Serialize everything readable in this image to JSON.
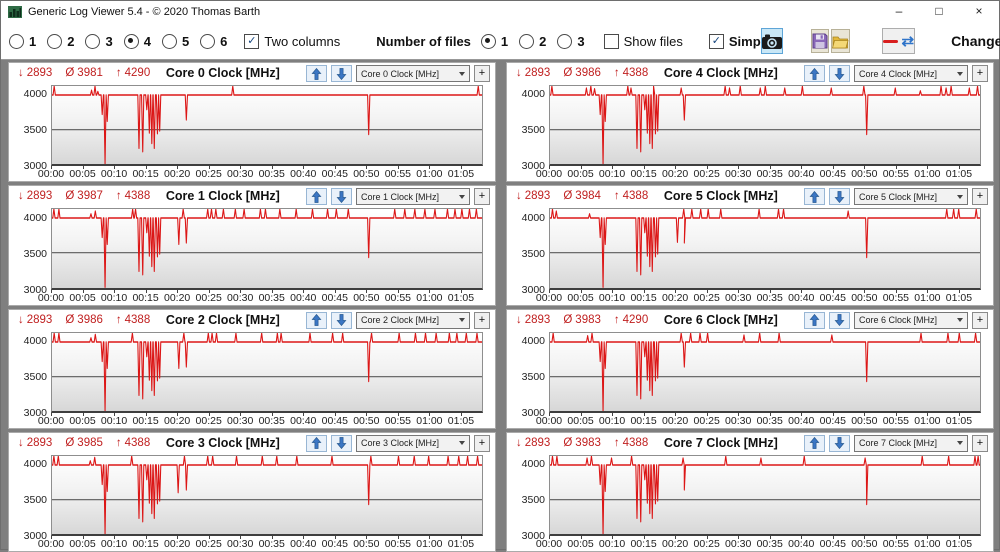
{
  "window": {
    "title": "Generic Log Viewer 5.4 - © 2020 Thomas Barth",
    "controls": {
      "minimize": "–",
      "maximize": "□",
      "close": "×"
    }
  },
  "toolbar": {
    "chart_count_options": [
      "1",
      "2",
      "3",
      "4",
      "5",
      "6"
    ],
    "chart_count_selected": "4",
    "two_columns_label": "Two columns",
    "two_columns_checked": true,
    "number_of_files_label": "Number of files",
    "file_count_options": [
      "1",
      "2",
      "3"
    ],
    "file_count_selected": "1",
    "show_files_label": "Show files",
    "show_files_checked": false,
    "simple_label": "Simple",
    "simple_checked": true,
    "change_all_label": "Change all",
    "check_glyph": "✓",
    "swap_glyph": "⇄",
    "accent_red": "#d81e1e",
    "accent_blue": "#2f74c9"
  },
  "panel_ui": {
    "add_button_label": "+"
  },
  "chart_defaults": {
    "type": "line",
    "line_color": "#dc1616",
    "baseline": 4000,
    "ylim": [
      3000,
      4130
    ],
    "yticks": [
      4000,
      3500,
      3000
    ],
    "gridline_value": 3500,
    "x_range_min": [
      0,
      68.5
    ],
    "xtick_minutes": [
      0,
      5,
      10,
      15,
      20,
      25,
      30,
      35,
      40,
      45,
      50,
      55,
      60,
      65
    ],
    "xtick_labels": [
      "00:00",
      "00:05",
      "00:10",
      "00:15",
      "00:20",
      "00:25",
      "00:30",
      "00:35",
      "00:40",
      "00:45",
      "00:50",
      "00:55",
      "01:00",
      "01:05"
    ],
    "common_down_spikes": [
      [
        8.0,
        3720
      ],
      [
        8.45,
        3000
      ],
      [
        8.8,
        3620
      ],
      [
        13.85,
        3230
      ],
      [
        14.45,
        3180
      ],
      [
        15.1,
        3790
      ],
      [
        15.5,
        3450
      ],
      [
        15.9,
        3300
      ],
      [
        16.3,
        3230
      ],
      [
        16.8,
        3440
      ],
      [
        17.15,
        3480
      ],
      [
        21.4,
        3640
      ],
      [
        50.45,
        3430
      ]
    ]
  },
  "chart_data": [
    {
      "type": "line",
      "title": "Core 0 Clock [MHz]",
      "selector_value": "Core 0 Clock [MHz]",
      "stats": {
        "min_label": "↓",
        "min": "2893",
        "avg_label": "Ø",
        "avg": "3981",
        "max_label": "↑",
        "max": "4290"
      },
      "up_spikes": [
        [
          0.35,
          4160
        ],
        [
          6.3,
          4070
        ],
        [
          6.85,
          4130
        ],
        [
          7.3,
          4050
        ],
        [
          28.8,
          4290
        ],
        [
          67.9,
          4290
        ]
      ],
      "extra_down_spikes": []
    },
    {
      "type": "line",
      "title": "Core 1 Clock [MHz]",
      "selector_value": "Core 1 Clock [MHz]",
      "stats": {
        "min_label": "↓",
        "min": "2893",
        "avg_label": "Ø",
        "avg": "3987",
        "max_label": "↑",
        "max": "4388"
      },
      "up_spikes": [
        [
          0.3,
          4388
        ],
        [
          1.1,
          4180
        ],
        [
          6.2,
          4060
        ],
        [
          6.9,
          4100
        ],
        [
          12.85,
          4388
        ],
        [
          13.3,
          4200
        ],
        [
          20.9,
          4150
        ],
        [
          24.8,
          4260
        ],
        [
          25.4,
          4388
        ],
        [
          26.1,
          4200
        ],
        [
          27.3,
          4160
        ],
        [
          29.2,
          4260
        ],
        [
          30.6,
          4160
        ],
        [
          33.2,
          4160
        ],
        [
          34.0,
          4220
        ],
        [
          36.3,
          4160
        ],
        [
          38.9,
          4220
        ],
        [
          41.5,
          4160
        ],
        [
          43.9,
          4388
        ],
        [
          45.3,
          4160
        ],
        [
          47.2,
          4220
        ],
        [
          54.6,
          4160
        ],
        [
          56.2,
          4220
        ],
        [
          57.8,
          4160
        ],
        [
          59.4,
          4260
        ],
        [
          61.0,
          4160
        ],
        [
          63.0,
          4220
        ],
        [
          64.2,
          4260
        ],
        [
          65.3,
          4160
        ],
        [
          66.5,
          4260
        ],
        [
          67.6,
          4388
        ]
      ],
      "extra_down_spikes": [
        [
          20.2,
          3620
        ]
      ]
    },
    {
      "type": "line",
      "title": "Core 2 Clock [MHz]",
      "selector_value": "Core 2 Clock [MHz]",
      "stats": {
        "min_label": "↓",
        "min": "2893",
        "avg_label": "Ø",
        "avg": "3986",
        "max_label": "↑",
        "max": "4388"
      },
      "up_spikes": [
        [
          0.35,
          4388
        ],
        [
          1.1,
          4160
        ],
        [
          6.2,
          4060
        ],
        [
          6.9,
          4110
        ],
        [
          12.8,
          4260
        ],
        [
          21.0,
          4160
        ],
        [
          24.9,
          4388
        ],
        [
          25.5,
          4260
        ],
        [
          26.2,
          4160
        ],
        [
          29.3,
          4220
        ],
        [
          33.4,
          4160
        ],
        [
          35.9,
          4388
        ],
        [
          36.5,
          4220
        ],
        [
          41.1,
          4160
        ],
        [
          44.7,
          4220
        ],
        [
          46.3,
          4160
        ],
        [
          50.9,
          4220
        ],
        [
          55.3,
          4160
        ],
        [
          57.9,
          4220
        ],
        [
          59.5,
          4160
        ],
        [
          61.2,
          4220
        ],
        [
          63.3,
          4160
        ],
        [
          64.5,
          4260
        ],
        [
          66.0,
          4220
        ],
        [
          67.7,
          4388
        ]
      ],
      "extra_down_spikes": [
        [
          20.2,
          3620
        ]
      ]
    },
    {
      "type": "line",
      "title": "Core 3 Clock [MHz]",
      "selector_value": "Core 3 Clock [MHz]",
      "stats": {
        "min_label": "↓",
        "min": "2893",
        "avg_label": "Ø",
        "avg": "3985",
        "max_label": "↑",
        "max": "4388"
      },
      "up_spikes": [
        [
          0.3,
          4388
        ],
        [
          1.0,
          4200
        ],
        [
          6.1,
          4060
        ],
        [
          6.8,
          4110
        ],
        [
          12.7,
          4220
        ],
        [
          21.1,
          4160
        ],
        [
          24.8,
          4388
        ],
        [
          25.6,
          4260
        ],
        [
          29.4,
          4220
        ],
        [
          33.5,
          4160
        ],
        [
          35.8,
          4260
        ],
        [
          39.0,
          4160
        ],
        [
          44.6,
          4220
        ],
        [
          50.8,
          4160
        ],
        [
          55.2,
          4220
        ],
        [
          57.7,
          4160
        ],
        [
          60.0,
          4260
        ],
        [
          63.1,
          4160
        ],
        [
          64.8,
          4220
        ],
        [
          66.2,
          4260
        ],
        [
          67.8,
          4388
        ]
      ],
      "extra_down_spikes": [
        [
          20.1,
          3600
        ]
      ]
    },
    {
      "type": "line",
      "title": "Core 4 Clock [MHz]",
      "selector_value": "Core 4 Clock [MHz]",
      "stats": {
        "min_label": "↓",
        "min": "2893",
        "avg_label": "Ø",
        "avg": "3986",
        "max_label": "↑",
        "max": "4388"
      },
      "up_spikes": [
        [
          0.3,
          4250
        ],
        [
          5.8,
          4100
        ],
        [
          6.5,
          4150
        ],
        [
          7.1,
          4090
        ],
        [
          12.4,
          4160
        ],
        [
          12.9,
          4100
        ],
        [
          16.5,
          4150
        ],
        [
          20.9,
          4100
        ],
        [
          27.9,
          4160
        ],
        [
          28.6,
          4100
        ],
        [
          30.3,
          4160
        ],
        [
          33.5,
          4100
        ],
        [
          34.3,
          4160
        ],
        [
          37.4,
          4100
        ],
        [
          40.2,
          4160
        ],
        [
          44.8,
          4100
        ],
        [
          50.0,
          4160
        ],
        [
          55.0,
          4100
        ],
        [
          59.0,
          4060
        ],
        [
          62.3,
          4160
        ],
        [
          63.1,
          4100
        ],
        [
          63.9,
          4160
        ],
        [
          66.8,
          4100
        ],
        [
          68.1,
          4388
        ]
      ],
      "extra_down_spikes": []
    },
    {
      "type": "line",
      "title": "Core 5 Clock [MHz]",
      "selector_value": "Core 5 Clock [MHz]",
      "stats": {
        "min_label": "↓",
        "min": "2893",
        "avg_label": "Ø",
        "avg": "3984",
        "max_label": "↑",
        "max": "4388"
      },
      "up_spikes": [
        [
          0.4,
          4220
        ],
        [
          1.0,
          4100
        ],
        [
          6.3,
          4060
        ],
        [
          21.3,
          4160
        ],
        [
          22.6,
          4220
        ],
        [
          24.0,
          4160
        ],
        [
          25.2,
          4220
        ],
        [
          27.2,
          4160
        ],
        [
          33.3,
          4220
        ],
        [
          36.4,
          4160
        ],
        [
          37.2,
          4220
        ],
        [
          47.5,
          4100
        ],
        [
          63.2,
          4160
        ],
        [
          64.3,
          4220
        ],
        [
          65.1,
          4160
        ],
        [
          67.9,
          4388
        ]
      ],
      "extra_down_spikes": [
        [
          20.3,
          3650
        ]
      ]
    },
    {
      "type": "line",
      "title": "Core 6 Clock [MHz]",
      "selector_value": "Core 6 Clock [MHz]",
      "stats": {
        "min_label": "↓",
        "min": "2893",
        "avg_label": "Ø",
        "avg": "3983",
        "max_label": "↑",
        "max": "4290"
      },
      "up_spikes": [
        [
          0.5,
          4200
        ],
        [
          6.0,
          4090
        ],
        [
          6.7,
          4130
        ],
        [
          20.9,
          4150
        ],
        [
          22.4,
          4200
        ],
        [
          23.9,
          4290
        ],
        [
          25.1,
          4150
        ],
        [
          30.9,
          4100
        ],
        [
          33.4,
          4150
        ],
        [
          36.5,
          4200
        ],
        [
          44.9,
          4100
        ],
        [
          59.1,
          4150
        ],
        [
          63.4,
          4200
        ],
        [
          65.2,
          4150
        ],
        [
          67.8,
          4290
        ]
      ],
      "extra_down_spikes": []
    },
    {
      "type": "line",
      "title": "Core 7 Clock [MHz]",
      "selector_value": "Core 7 Clock [MHz]",
      "stats": {
        "min_label": "↓",
        "min": "2893",
        "avg_label": "Ø",
        "avg": "3983",
        "max_label": "↑",
        "max": "4388"
      },
      "up_spikes": [
        [
          0.4,
          4300
        ],
        [
          1.1,
          4150
        ],
        [
          5.9,
          4100
        ],
        [
          6.6,
          4150
        ],
        [
          9.8,
          4100
        ],
        [
          13.0,
          4150
        ],
        [
          21.2,
          4100
        ],
        [
          28.0,
          4150
        ],
        [
          33.6,
          4100
        ],
        [
          40.5,
          4150
        ],
        [
          50.2,
          4100
        ],
        [
          59.3,
          4220
        ],
        [
          63.5,
          4150
        ],
        [
          67.7,
          4388
        ],
        [
          68.2,
          4300
        ]
      ],
      "extra_down_spikes": []
    }
  ]
}
